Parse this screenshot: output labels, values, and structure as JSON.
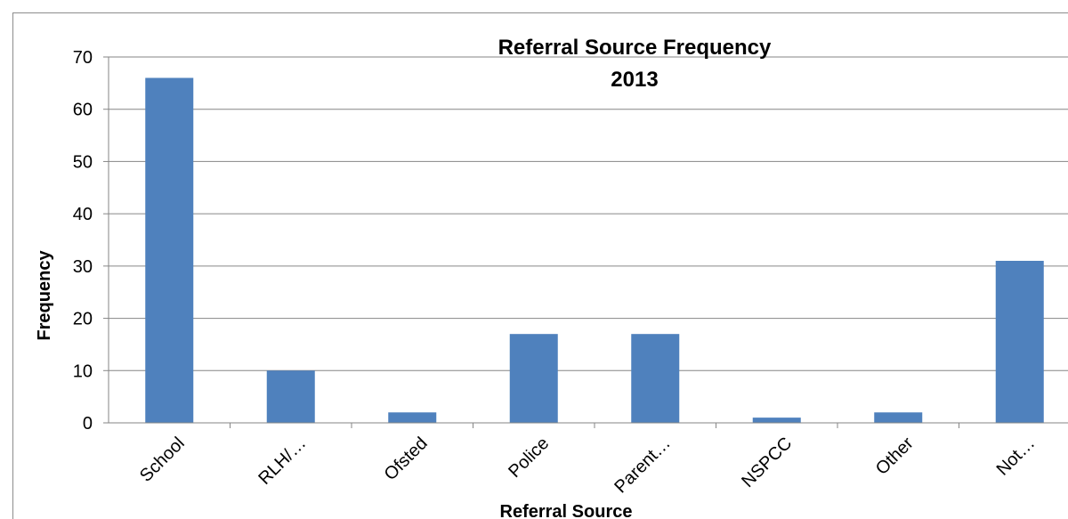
{
  "chart_data": {
    "type": "bar",
    "title": "Referral Source Frequency",
    "subtitle": "2013",
    "xlabel": "Referral Source",
    "ylabel": "Frequency",
    "categories": [
      "School",
      "RLH/…",
      "Ofsted",
      "Police",
      "Parent…",
      "NSPCC",
      "Other",
      "Not…"
    ],
    "values": [
      66,
      10,
      2,
      17,
      17,
      1,
      2,
      31
    ],
    "ylim": [
      0,
      70
    ],
    "yticks": [
      0,
      10,
      20,
      30,
      40,
      50,
      60,
      70
    ],
    "grid": true,
    "legend": "none",
    "bar_color": "#4f81bd"
  }
}
